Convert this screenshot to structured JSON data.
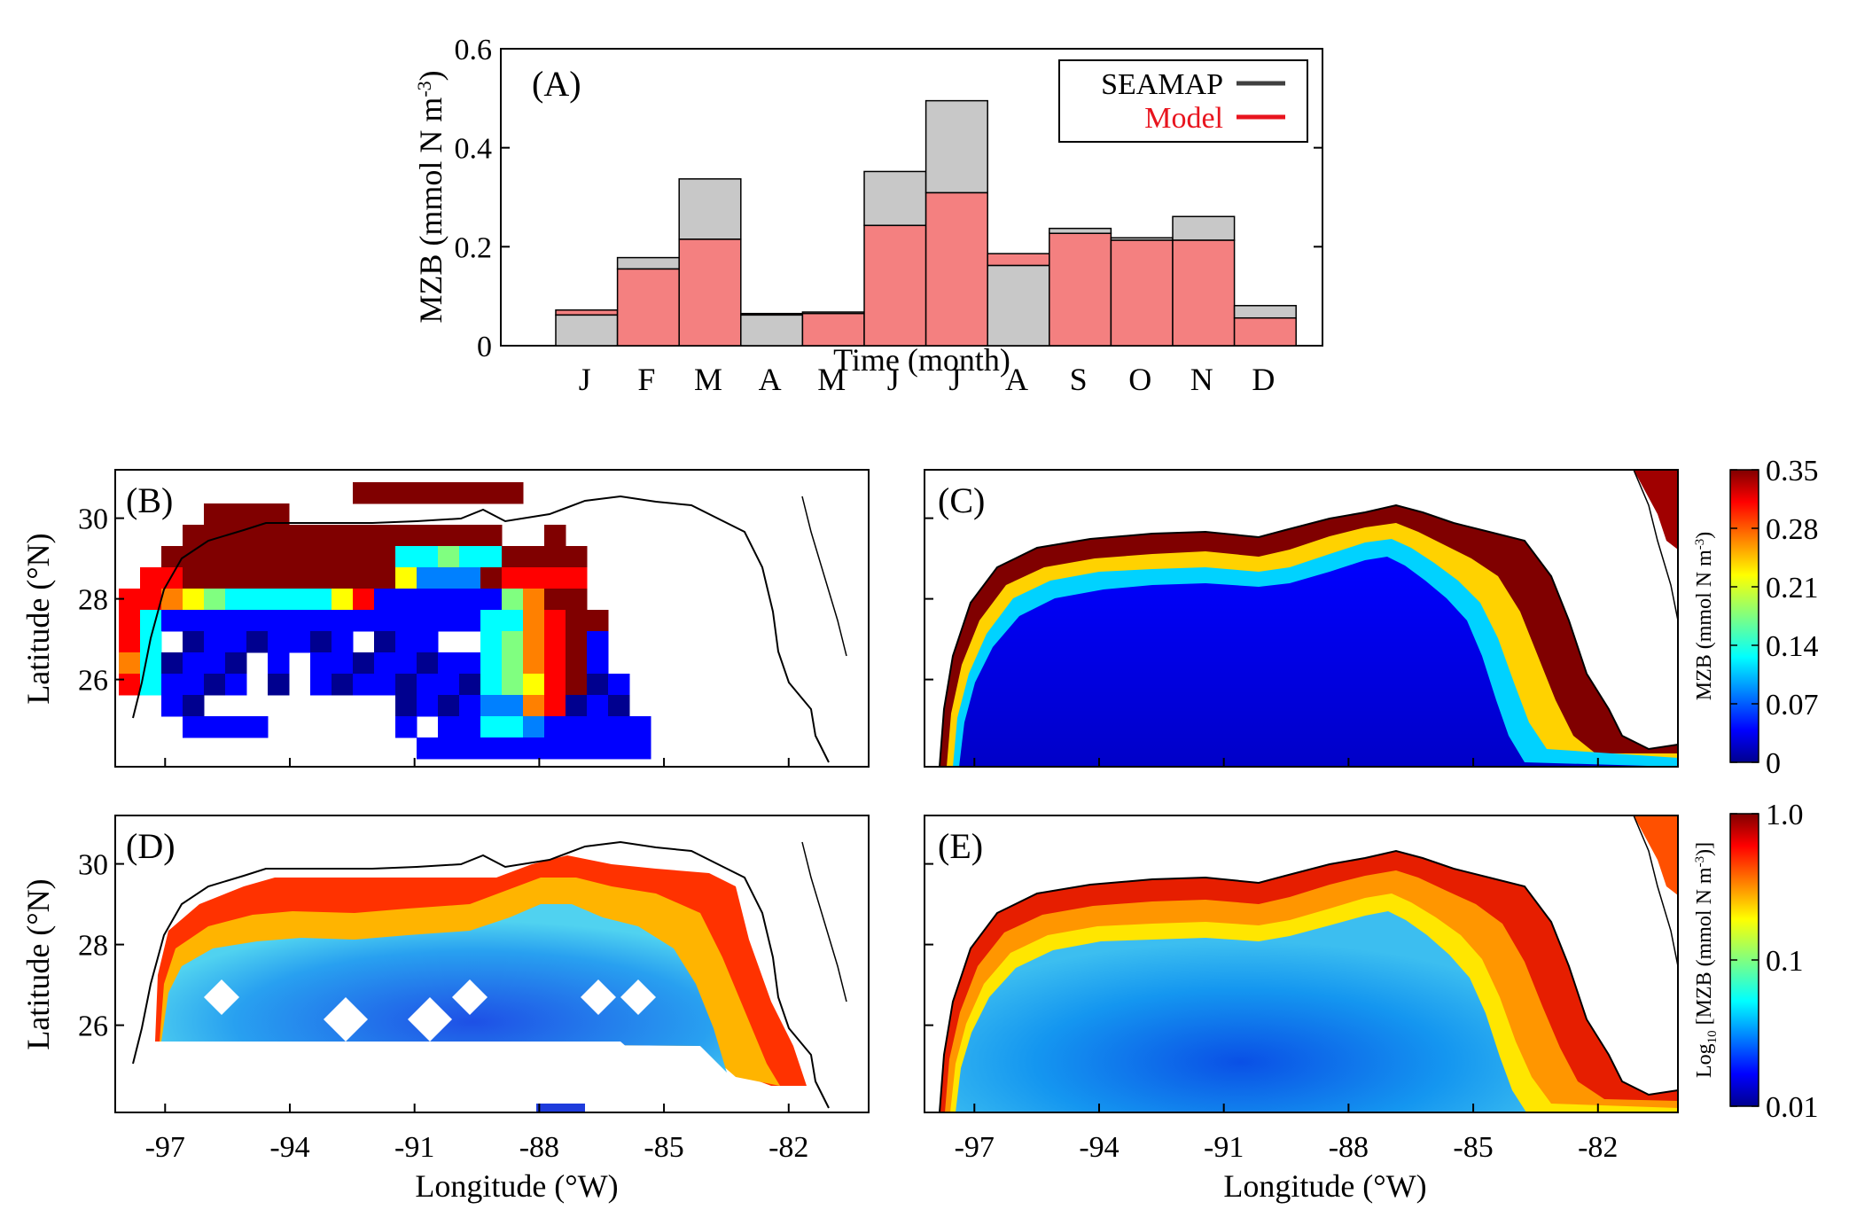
{
  "chart_data": [
    {
      "panel": "(A)",
      "type": "bar",
      "xlabel": "Time (month)",
      "ylabel": "MZB (mmol N m",
      "ylabel_sup": "-3",
      "ylabel_close": ")",
      "ylim": [
        0,
        0.6
      ],
      "yticks": [
        0,
        0.2,
        0.4,
        0.6
      ],
      "ytick_labels": [
        "0",
        "0.2",
        "0.4",
        "0.6"
      ],
      "categories": [
        "J",
        "F",
        "M",
        "A",
        "M",
        "J",
        "J",
        "A",
        "S",
        "O",
        "N",
        "D"
      ],
      "series": [
        {
          "name": "SEAMAP",
          "color": "#c8c8c8",
          "legend_color": "#404040",
          "values": [
            0.062,
            0.178,
            0.337,
            0.062,
            0.068,
            0.352,
            0.495,
            0.162,
            0.237,
            0.218,
            0.261,
            0.081
          ]
        },
        {
          "name": "Model",
          "color": "#f48080",
          "legend_color": "#e8141e",
          "values": [
            0.072,
            0.155,
            0.215,
            0.065,
            0.065,
            0.243,
            0.309,
            0.186,
            0.227,
            0.213,
            0.213,
            0.056
          ]
        }
      ],
      "legend_position": "top-right"
    },
    {
      "panel": "(B)",
      "type": "heatmap",
      "ylabel": "Latitude (°N)",
      "yticks": [
        30,
        28,
        26
      ],
      "ytick_labels": [
        "30",
        "28",
        "26"
      ],
      "colorbar": "linear"
    },
    {
      "panel": "(C)",
      "type": "heatmap",
      "colorbar": "linear"
    },
    {
      "panel": "(D)",
      "type": "heatmap",
      "ylabel": "Latitude (°N)",
      "yticks": [
        30,
        28,
        26
      ],
      "ytick_labels": [
        "30",
        "28",
        "26"
      ],
      "xlabel": "Longitude (°W)",
      "xticks": [
        -97,
        -94,
        -91,
        -88,
        -85,
        -82
      ],
      "xtick_labels": [
        "-97",
        "-94",
        "-91",
        "-88",
        "-85",
        "-82"
      ],
      "colorbar": "log"
    },
    {
      "panel": "(E)",
      "type": "heatmap",
      "xlabel": "Longitude (°W)",
      "xticks": [
        -97,
        -94,
        -91,
        -88,
        -85,
        -82
      ],
      "xtick_labels": [
        "-97",
        "-94",
        "-91",
        "-88",
        "-85",
        "-82"
      ],
      "colorbar": "log"
    }
  ],
  "colorbars": {
    "linear": {
      "label": "MZB (mmol N m",
      "label_sup": "-3",
      "label_close": ")",
      "tick_labels": [
        "0.35",
        "0.28",
        "0.21",
        "0.14",
        "0.07",
        "0"
      ],
      "range": [
        0,
        0.35
      ]
    },
    "log": {
      "label_prefix": "Log",
      "label_sub": "10",
      "label_main": " [MZB (mmol N m",
      "label_sup": "-3",
      "label_close": ")]",
      "tick_labels": [
        "1.0",
        "0.1",
        "0.01"
      ],
      "range": [
        0.01,
        1.0
      ]
    }
  },
  "colors": {
    "jet": [
      "#00008f",
      "#0000ff",
      "#0080ff",
      "#00ffff",
      "#80ff80",
      "#ffff00",
      "#ff8000",
      "#ff0000",
      "#800000"
    ],
    "missing": "#ffffff",
    "coast": "#000000"
  }
}
